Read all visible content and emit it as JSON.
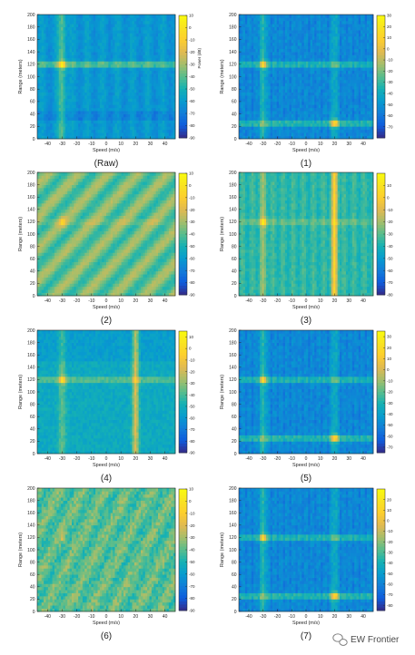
{
  "watermark": {
    "text": "EW Frontier",
    "icon": "wechat-bubble-icon"
  },
  "colormap": "parula",
  "chart_data": [
    {
      "type": "heatmap",
      "caption": "(Raw)",
      "xlabel": "Speed (m/s)",
      "ylabel": "Range (meters)",
      "colorbar_label": "Power (dB)",
      "xlim": [
        -47,
        47
      ],
      "ylim": [
        0,
        200
      ],
      "xticks": [
        -40,
        -30,
        -20,
        -10,
        0,
        10,
        20,
        30,
        40
      ],
      "yticks": [
        0,
        20,
        40,
        60,
        80,
        100,
        120,
        140,
        160,
        180,
        200
      ],
      "clim": [
        -90,
        10
      ],
      "cticks": [
        10,
        0,
        -10,
        -20,
        -30,
        -40,
        -50,
        -60,
        -70,
        -80,
        -90
      ],
      "targets": [
        {
          "speed": -30,
          "range": 120
        }
      ],
      "pattern": "raw"
    },
    {
      "type": "heatmap",
      "caption": "(1)",
      "xlabel": "Speed (m/s)",
      "ylabel": "Range (meters)",
      "xlim": [
        -47,
        47
      ],
      "ylim": [
        0,
        200
      ],
      "xticks": [
        -40,
        -30,
        -20,
        -10,
        0,
        10,
        20,
        30,
        40
      ],
      "yticks": [
        0,
        20,
        40,
        60,
        80,
        100,
        120,
        140,
        160,
        180,
        200
      ],
      "clim": [
        -80,
        30
      ],
      "cticks": [
        30,
        20,
        10,
        0,
        -10,
        -20,
        -30,
        -40,
        -50,
        -60,
        -70
      ],
      "targets": [
        {
          "speed": -30,
          "range": 120
        },
        {
          "speed": 20,
          "range": 25
        }
      ],
      "pattern": "two"
    },
    {
      "type": "heatmap",
      "caption": "(2)",
      "xlabel": "Speed (m/s)",
      "ylabel": "Range (meters)",
      "xlim": [
        -47,
        47
      ],
      "ylim": [
        0,
        200
      ],
      "xticks": [
        -40,
        -30,
        -20,
        -10,
        0,
        10,
        20,
        30,
        40
      ],
      "yticks": [
        0,
        20,
        40,
        60,
        80,
        100,
        120,
        140,
        160,
        180,
        200
      ],
      "clim": [
        -90,
        10
      ],
      "cticks": [
        10,
        0,
        -10,
        -20,
        -30,
        -40,
        -50,
        -60,
        -70,
        -80,
        -90
      ],
      "targets": [
        {
          "speed": -30,
          "range": 120
        }
      ],
      "pattern": "diag"
    },
    {
      "type": "heatmap",
      "caption": "(3)",
      "xlabel": "Speed (m/s)",
      "ylabel": "Range (meters)",
      "xlim": [
        -47,
        47
      ],
      "ylim": [
        0,
        200
      ],
      "xticks": [
        -40,
        -30,
        -20,
        -10,
        0,
        10,
        20,
        30,
        40
      ],
      "yticks": [
        0,
        20,
        40,
        60,
        80,
        100,
        120,
        140,
        160,
        180,
        200
      ],
      "clim": [
        -80,
        20
      ],
      "cticks": [
        10,
        0,
        -10,
        -20,
        -30,
        -40,
        -50,
        -60,
        -70,
        -80
      ],
      "targets": [
        {
          "speed": -30,
          "range": 120
        },
        {
          "speed": 20,
          "range": null
        }
      ],
      "pattern": "vert"
    },
    {
      "type": "heatmap",
      "caption": "(4)",
      "xlabel": "Speed (m/s)",
      "ylabel": "Range (meters)",
      "xlim": [
        -47,
        47
      ],
      "ylim": [
        0,
        200
      ],
      "xticks": [
        -40,
        -30,
        -20,
        -10,
        0,
        10,
        20,
        30,
        40
      ],
      "yticks": [
        0,
        20,
        40,
        60,
        80,
        100,
        120,
        140,
        160,
        180,
        200
      ],
      "clim": [
        -90,
        15
      ],
      "cticks": [
        10,
        0,
        -10,
        -20,
        -30,
        -40,
        -50,
        -60,
        -70,
        -80,
        -90
      ],
      "targets": [
        {
          "speed": -30,
          "range": 120
        },
        {
          "speed": 20,
          "range": null
        }
      ],
      "pattern": "vert4"
    },
    {
      "type": "heatmap",
      "caption": "(5)",
      "xlabel": "Speed (m/s)",
      "ylabel": "Range (meters)",
      "xlim": [
        -47,
        47
      ],
      "ylim": [
        0,
        200
      ],
      "xticks": [
        -40,
        -30,
        -20,
        -10,
        0,
        10,
        20,
        30,
        40
      ],
      "yticks": [
        0,
        20,
        40,
        60,
        80,
        100,
        120,
        140,
        160,
        180,
        200
      ],
      "clim": [
        -75,
        35
      ],
      "cticks": [
        30,
        20,
        10,
        0,
        -10,
        -20,
        -30,
        -40,
        -50,
        -60,
        -70
      ],
      "targets": [
        {
          "speed": -30,
          "range": 120
        },
        {
          "speed": 20,
          "range": 25
        }
      ],
      "pattern": "two"
    },
    {
      "type": "heatmap",
      "caption": "(6)",
      "xlabel": "Speed (m/s)",
      "ylabel": "Range (meters)",
      "xlim": [
        -47,
        47
      ],
      "ylim": [
        0,
        200
      ],
      "xticks": [
        -40,
        -30,
        -20,
        -10,
        0,
        10,
        20,
        30,
        40
      ],
      "yticks": [
        0,
        20,
        40,
        60,
        80,
        100,
        120,
        140,
        160,
        180,
        200
      ],
      "clim": [
        -90,
        10
      ],
      "cticks": [
        10,
        0,
        -10,
        -20,
        -30,
        -40,
        -50,
        -60,
        -70,
        -80,
        -90
      ],
      "targets": [
        {
          "speed": -30,
          "range": 120
        }
      ],
      "pattern": "noisy"
    },
    {
      "type": "heatmap",
      "caption": "(7)",
      "xlabel": "Speed (m/s)",
      "ylabel": "Range (meters)",
      "xlim": [
        -47,
        47
      ],
      "ylim": [
        0,
        200
      ],
      "xticks": [
        -40,
        -30,
        -20,
        -10,
        0,
        10,
        20,
        30,
        40
      ],
      "yticks": [
        0,
        20,
        40,
        60,
        80,
        100,
        120,
        140,
        160,
        180,
        200
      ],
      "clim": [
        -85,
        30
      ],
      "cticks": [
        20,
        10,
        0,
        -10,
        -20,
        -30,
        -40,
        -50,
        -60,
        -70,
        -80
      ],
      "targets": [
        {
          "speed": -30,
          "range": 120
        },
        {
          "speed": 20,
          "range": 25
        }
      ],
      "pattern": "two"
    }
  ]
}
